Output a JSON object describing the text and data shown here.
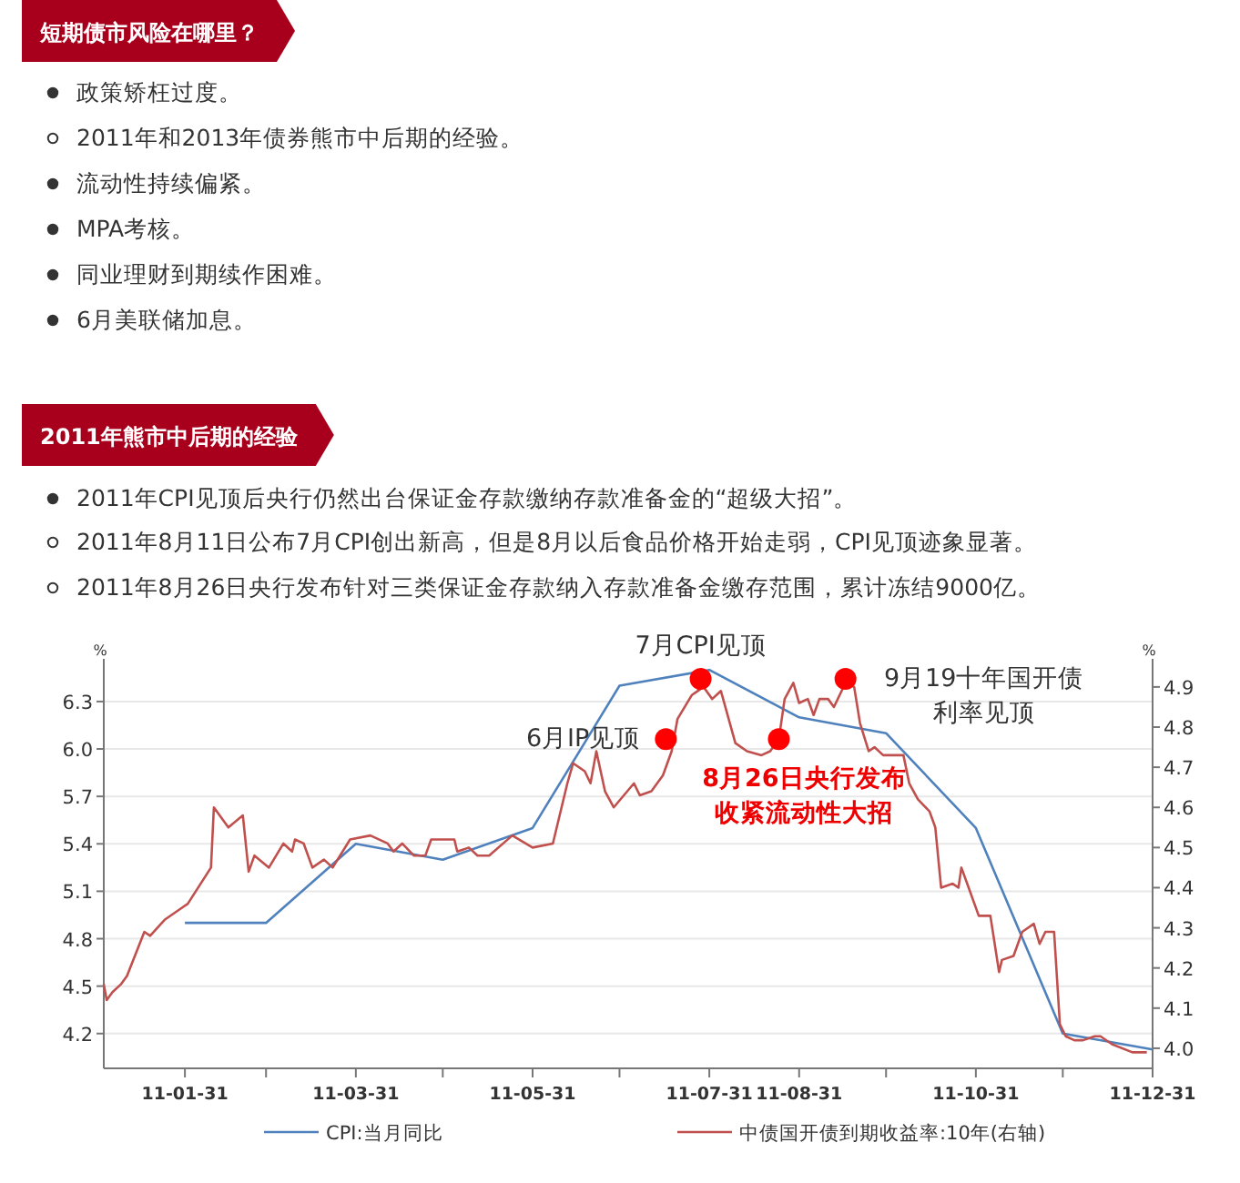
{
  "chart_data": {
    "type": "line",
    "annotations": [
      "短期债市风险在哪里？",
      "政策矫枉过度。",
      "2011年和2013年债券熊市中后期的经验。",
      "流动性持续偏紧。",
      "MPA考核。",
      "同业理财到期续作困难。",
      "6月美联储加息。",
      "2011年熊市中后期的经验",
      "2011年CPI见顶后央行仍然出台保证金存款缴纳存款准备金的“超级大招”。",
      " 2011年8月11日公布7月CPI创出新高，但是8月以后食品价格开始走弱，CPI见顶迹象显著。",
      "2011年8月26日央行发布针对三类保证金存款纳入存款准备金缴存范围，累计冻结9000亿。",
      "6月IP见顶",
      "7月CPI见顶",
      "8月26日央行发布",
      "收紧流动性大招",
      "9月19十年国开债",
      "利率见顶"
    ],
    "ylabel": "%",
    "y2label": "%",
    "xlim": [
      "2011-01-03",
      "2011-12-31"
    ],
    "xticks": [
      {
        "value": "2011-01-31",
        "label": "11-01-31"
      },
      {
        "value": "2011-02-28",
        "label": null
      },
      {
        "value": "2011-03-31",
        "label": "11-03-31"
      },
      {
        "value": "2011-04-30",
        "label": null
      },
      {
        "value": "2011-05-31",
        "label": "11-05-31"
      },
      {
        "value": "2011-06-30",
        "label": null
      },
      {
        "value": "2011-07-31",
        "label": "11-07-31"
      },
      {
        "value": "2011-08-31",
        "label": "11-08-31"
      },
      {
        "value": "2011-09-30",
        "label": null
      },
      {
        "value": "2011-10-31",
        "label": "11-10-31"
      },
      {
        "value": "2011-11-30",
        "label": null
      },
      {
        "value": "2011-12-31",
        "label": "11-12-31"
      }
    ],
    "ylim": [
      3.98,
      6.57
    ],
    "yticks": [
      4.2,
      4.5,
      4.8,
      5.1,
      5.4,
      5.7,
      {
        "value": 6,
        "label": "6.0"
      },
      6.3
    ],
    "y2lim": [
      3.95,
      4.97
    ],
    "y2ticks": [
      {
        "value": 4,
        "label": "4.0"
      },
      4.1,
      4.2,
      4.3,
      4.4,
      4.5,
      4.6,
      4.7,
      4.8,
      4.9
    ],
    "grid": "y",
    "legend": "bottom",
    "marker": "none",
    "line_style": "solid",
    "series": [
      {
        "type": "scatter",
        "marker": "circle",
        "color": "#ff0000",
        "axis": "y2",
        "x": [
          "2011-07-16",
          "2011-07-28",
          "2011-08-24",
          "2011-09-16"
        ],
        "values": [
          4.77,
          4.92,
          4.77,
          4.92
        ]
      },
      {
        "name": "CPI:当月同比",
        "color": "#4f81bd",
        "x": [
          "2011-01-31",
          "2011-02-28",
          "2011-03-31",
          "2011-04-30",
          "2011-05-31",
          "2011-06-30",
          "2011-07-31",
          "2011-08-31",
          "2011-09-30",
          "2011-10-31",
          "2011-11-30",
          "2011-12-31"
        ],
        "values": [
          4.9,
          4.9,
          5.4,
          5.3,
          5.5,
          6.4,
          6.5,
          6.2,
          6.1,
          5.5,
          4.2,
          4.1
        ]
      },
      {
        "name": "中债国开债到期收益率:10年(右轴)",
        "color": "#c0504d",
        "axis": "y2",
        "x": [
          "2011-01-03",
          "2011-01-04",
          "2011-01-06",
          "2011-01-09",
          "2011-01-11",
          "2011-01-17",
          "2011-01-19",
          "2011-01-24",
          "2011-01-30",
          "2011-02-01",
          "2011-02-09",
          "2011-02-10",
          "2011-02-15",
          "2011-02-20",
          "2011-02-22",
          "2011-02-24",
          "2011-03-01",
          "2011-03-06",
          "2011-03-09",
          "2011-03-10",
          "2011-03-13",
          "2011-03-16",
          "2011-03-20",
          "2011-03-23",
          "2011-03-29",
          "2011-04-05",
          "2011-04-11",
          "2011-04-13",
          "2011-04-16",
          "2011-04-20",
          "2011-04-24",
          "2011-04-26",
          "2011-05-04",
          "2011-05-05",
          "2011-05-09",
          "2011-05-12",
          "2011-05-16",
          "2011-05-24",
          "2011-05-31",
          "2011-06-07",
          "2011-06-12",
          "2011-06-14",
          "2011-06-18",
          "2011-06-20",
          "2011-06-22",
          "2011-06-25",
          "2011-06-28",
          "2011-07-05",
          "2011-07-07",
          "2011-07-11",
          "2011-07-15",
          "2011-07-18",
          "2011-07-20",
          "2011-07-25",
          "2011-07-29",
          "2011-08-01",
          "2011-08-04",
          "2011-08-09",
          "2011-08-13",
          "2011-08-18",
          "2011-08-21",
          "2011-08-24",
          "2011-08-26",
          "2011-08-29",
          "2011-08-31",
          "2011-09-03",
          "2011-09-05",
          "2011-09-07",
          "2011-09-10",
          "2011-09-12",
          "2011-09-16",
          "2011-09-19",
          "2011-09-21",
          "2011-09-24",
          "2011-09-26",
          "2011-09-29",
          "2011-10-06",
          "2011-10-08",
          "2011-10-11",
          "2011-10-15",
          "2011-10-17",
          "2011-10-19",
          "2011-10-23",
          "2011-10-25",
          "2011-10-26",
          "2011-10-28",
          "2011-11-01",
          "2011-11-05",
          "2011-11-08",
          "2011-11-09",
          "2011-11-13",
          "2011-11-16",
          "2011-11-20",
          "2011-11-22",
          "2011-11-24",
          "2011-11-27",
          "2011-11-29",
          "2011-12-01",
          "2011-12-04",
          "2011-12-07",
          "2011-12-11",
          "2011-12-13",
          "2011-12-17",
          "2011-12-24",
          "2011-12-27",
          "2011-12-29"
        ],
        "values": [
          4.16,
          4.12,
          4.14,
          4.16,
          4.18,
          4.29,
          4.28,
          4.32,
          4.35,
          4.36,
          4.45,
          4.6,
          4.55,
          4.58,
          4.44,
          4.48,
          4.45,
          4.51,
          4.49,
          4.52,
          4.51,
          4.45,
          4.47,
          4.45,
          4.52,
          4.53,
          4.51,
          4.49,
          4.51,
          4.48,
          4.48,
          4.52,
          4.52,
          4.49,
          4.5,
          4.48,
          4.48,
          4.53,
          4.5,
          4.51,
          4.66,
          4.71,
          4.69,
          4.66,
          4.74,
          4.64,
          4.6,
          4.66,
          4.63,
          4.64,
          4.68,
          4.74,
          4.82,
          4.88,
          4.9,
          4.87,
          4.89,
          4.76,
          4.74,
          4.73,
          4.74,
          4.77,
          4.87,
          4.91,
          4.86,
          4.87,
          4.83,
          4.87,
          4.87,
          4.85,
          4.91,
          4.9,
          4.81,
          4.74,
          4.75,
          4.73,
          4.73,
          4.66,
          4.62,
          4.59,
          4.55,
          4.4,
          4.41,
          4.4,
          4.45,
          4.41,
          4.33,
          4.33,
          4.19,
          4.22,
          4.23,
          4.29,
          4.31,
          4.26,
          4.29,
          4.29,
          4.06,
          4.03,
          4.02,
          4.02,
          4.03,
          4.03,
          4.01,
          3.99,
          3.99,
          3.99
        ]
      }
    ]
  }
}
